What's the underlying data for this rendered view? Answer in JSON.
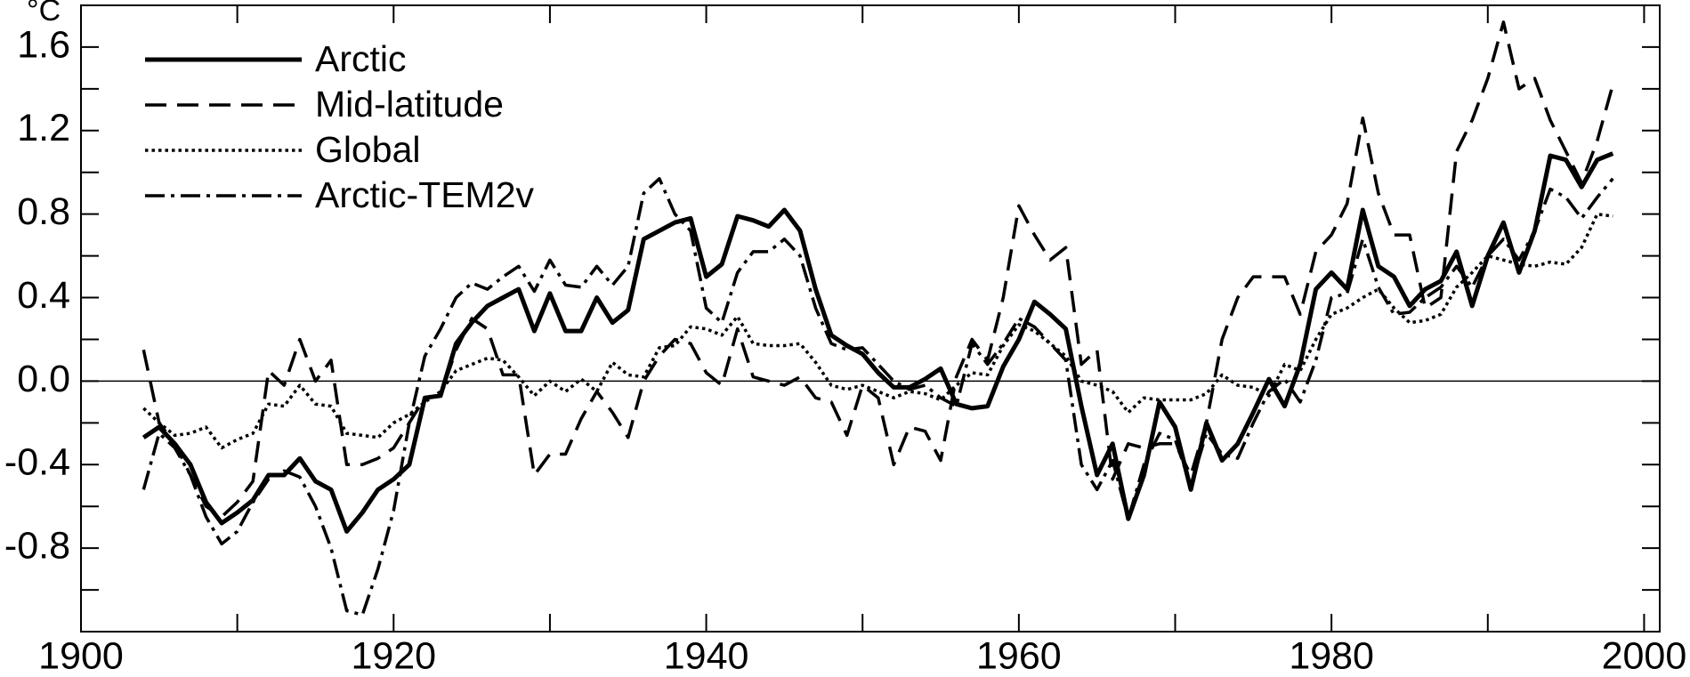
{
  "chart_data": {
    "type": "line",
    "ylabel": "°C",
    "x": [
      1904,
      1905,
      1906,
      1907,
      1908,
      1909,
      1910,
      1911,
      1912,
      1913,
      1914,
      1915,
      1916,
      1917,
      1918,
      1919,
      1920,
      1921,
      1922,
      1923,
      1924,
      1925,
      1926,
      1927,
      1928,
      1929,
      1930,
      1931,
      1932,
      1933,
      1934,
      1935,
      1936,
      1937,
      1938,
      1939,
      1940,
      1941,
      1942,
      1943,
      1944,
      1945,
      1946,
      1947,
      1948,
      1949,
      1950,
      1951,
      1952,
      1953,
      1954,
      1955,
      1956,
      1957,
      1958,
      1959,
      1960,
      1961,
      1962,
      1963,
      1964,
      1965,
      1966,
      1967,
      1968,
      1969,
      1970,
      1971,
      1972,
      1973,
      1974,
      1975,
      1976,
      1977,
      1978,
      1979,
      1980,
      1981,
      1982,
      1983,
      1984,
      1985,
      1986,
      1987,
      1988,
      1989,
      1990,
      1991,
      1992,
      1993,
      1994,
      1995,
      1996,
      1997,
      1998
    ],
    "series": [
      {
        "name": "Arctic",
        "color": "#000000",
        "dash": "solid",
        "width": 5,
        "values": [
          -0.27,
          -0.22,
          -0.3,
          -0.4,
          -0.58,
          -0.68,
          -0.63,
          -0.57,
          -0.45,
          -0.45,
          -0.37,
          -0.48,
          -0.52,
          -0.72,
          -0.63,
          -0.52,
          -0.47,
          -0.4,
          -0.08,
          -0.07,
          0.18,
          0.28,
          0.36,
          0.4,
          0.44,
          0.24,
          0.42,
          0.24,
          0.24,
          0.4,
          0.28,
          0.34,
          0.68,
          0.72,
          0.76,
          0.78,
          0.5,
          0.56,
          0.79,
          0.77,
          0.74,
          0.82,
          0.72,
          0.44,
          0.22,
          0.17,
          0.13,
          0.04,
          -0.03,
          -0.03,
          0.01,
          0.06,
          -0.11,
          -0.13,
          -0.12,
          0.07,
          0.2,
          0.38,
          0.32,
          0.25,
          -0.12,
          -0.45,
          -0.3,
          -0.66,
          -0.45,
          -0.1,
          -0.22,
          -0.52,
          -0.2,
          -0.38,
          -0.3,
          -0.15,
          0.01,
          -0.12,
          0.08,
          0.44,
          0.52,
          0.44,
          0.82,
          0.55,
          0.5,
          0.36,
          0.44,
          0.48,
          0.62,
          0.36,
          0.6,
          0.76,
          0.52,
          0.72,
          1.08,
          1.06,
          0.93,
          1.06,
          1.09
        ]
      },
      {
        "name": "Mid-latitude",
        "color": "#000000",
        "dash": "dashed",
        "width": 3.5,
        "values": [
          0.15,
          -0.2,
          -0.3,
          -0.45,
          -0.6,
          -0.65,
          -0.58,
          -0.48,
          0.05,
          -0.02,
          0.2,
          0.0,
          0.1,
          -0.4,
          -0.4,
          -0.37,
          -0.32,
          -0.2,
          -0.08,
          -0.07,
          0.15,
          0.3,
          0.25,
          0.03,
          0.03,
          -0.45,
          -0.35,
          -0.35,
          -0.18,
          -0.05,
          -0.15,
          -0.27,
          0.0,
          0.12,
          0.2,
          0.18,
          0.04,
          -0.02,
          0.25,
          0.02,
          0.0,
          -0.02,
          0.02,
          -0.08,
          -0.1,
          -0.26,
          -0.02,
          -0.08,
          -0.4,
          -0.22,
          -0.24,
          -0.38,
          0.02,
          0.2,
          0.1,
          0.4,
          0.84,
          0.7,
          0.58,
          0.64,
          0.08,
          0.15,
          -0.47,
          -0.3,
          -0.32,
          -0.3,
          -0.3,
          -0.45,
          -0.2,
          0.2,
          0.4,
          0.5,
          0.5,
          0.5,
          0.32,
          0.62,
          0.7,
          0.85,
          1.26,
          0.9,
          0.7,
          0.7,
          0.35,
          0.4,
          1.1,
          1.25,
          1.45,
          1.72,
          1.4,
          1.45,
          1.25,
          1.1,
          0.95,
          1.15,
          1.42
        ]
      },
      {
        "name": "Global",
        "color": "#000000",
        "dash": "dotted",
        "width": 3.5,
        "values": [
          -0.13,
          -0.2,
          -0.26,
          -0.25,
          -0.22,
          -0.32,
          -0.28,
          -0.25,
          -0.11,
          -0.12,
          -0.02,
          -0.11,
          -0.12,
          -0.25,
          -0.26,
          -0.27,
          -0.2,
          -0.16,
          -0.1,
          -0.05,
          0.05,
          0.08,
          0.11,
          0.1,
          0.02,
          -0.07,
          0.0,
          -0.05,
          0.01,
          -0.05,
          0.09,
          0.03,
          0.02,
          0.16,
          0.17,
          0.26,
          0.25,
          0.22,
          0.31,
          0.18,
          0.17,
          0.17,
          0.18,
          0.09,
          -0.02,
          -0.04,
          -0.02,
          -0.05,
          -0.08,
          -0.05,
          -0.06,
          -0.09,
          -0.02,
          0.04,
          0.03,
          0.17,
          0.27,
          0.24,
          0.18,
          0.12,
          0.0,
          -0.02,
          -0.05,
          -0.15,
          -0.08,
          -0.09,
          -0.09,
          -0.09,
          -0.06,
          0.03,
          -0.02,
          -0.03,
          -0.07,
          0.08,
          0.05,
          0.2,
          0.32,
          0.35,
          0.4,
          0.44,
          0.35,
          0.28,
          0.29,
          0.32,
          0.45,
          0.52,
          0.6,
          0.58,
          0.56,
          0.55,
          0.57,
          0.56,
          0.64,
          0.8,
          0.79
        ]
      },
      {
        "name": "Arctic-TEM2v",
        "color": "#000000",
        "dash": "dashdot",
        "width": 3.5,
        "values": [
          -0.52,
          -0.25,
          -0.32,
          -0.45,
          -0.65,
          -0.78,
          -0.72,
          -0.58,
          -0.47,
          -0.43,
          -0.46,
          -0.6,
          -0.8,
          -1.1,
          -1.12,
          -0.9,
          -0.62,
          -0.2,
          0.12,
          0.25,
          0.4,
          0.47,
          0.44,
          0.5,
          0.55,
          0.43,
          0.58,
          0.46,
          0.45,
          0.55,
          0.46,
          0.55,
          0.9,
          0.97,
          0.8,
          0.72,
          0.35,
          0.28,
          0.52,
          0.62,
          0.62,
          0.68,
          0.6,
          0.35,
          0.18,
          0.15,
          0.16,
          0.08,
          0.0,
          -0.04,
          -0.02,
          -0.08,
          -0.12,
          0.18,
          0.08,
          0.18,
          0.3,
          0.26,
          0.18,
          0.1,
          -0.4,
          -0.52,
          -0.38,
          -0.66,
          -0.4,
          -0.25,
          -0.28,
          -0.5,
          -0.25,
          -0.35,
          -0.37,
          -0.2,
          -0.05,
          0.01,
          -0.1,
          0.1,
          0.4,
          0.42,
          0.68,
          0.45,
          0.32,
          0.33,
          0.4,
          0.45,
          0.55,
          0.45,
          0.6,
          0.68,
          0.58,
          0.72,
          0.92,
          0.88,
          0.78,
          0.88,
          0.97
        ]
      }
    ],
    "xlim": [
      1900,
      2001
    ],
    "xticks": [
      1900,
      1920,
      1940,
      1960,
      1980,
      2000
    ],
    "xminorticks": [
      1910,
      1930,
      1950,
      1970,
      1990
    ],
    "ylim": [
      -1.2,
      1.8
    ],
    "yticks": [
      -0.8,
      -0.4,
      {
        "value": 0,
        "label": "0.0"
      },
      0.4,
      0.8,
      1.2,
      1.6
    ],
    "yminorticks": [
      -1.0,
      -0.6,
      -0.2,
      0.2,
      0.6,
      1.0,
      1.4
    ],
    "zero_line": true,
    "grid": false,
    "legend": "upper left"
  }
}
